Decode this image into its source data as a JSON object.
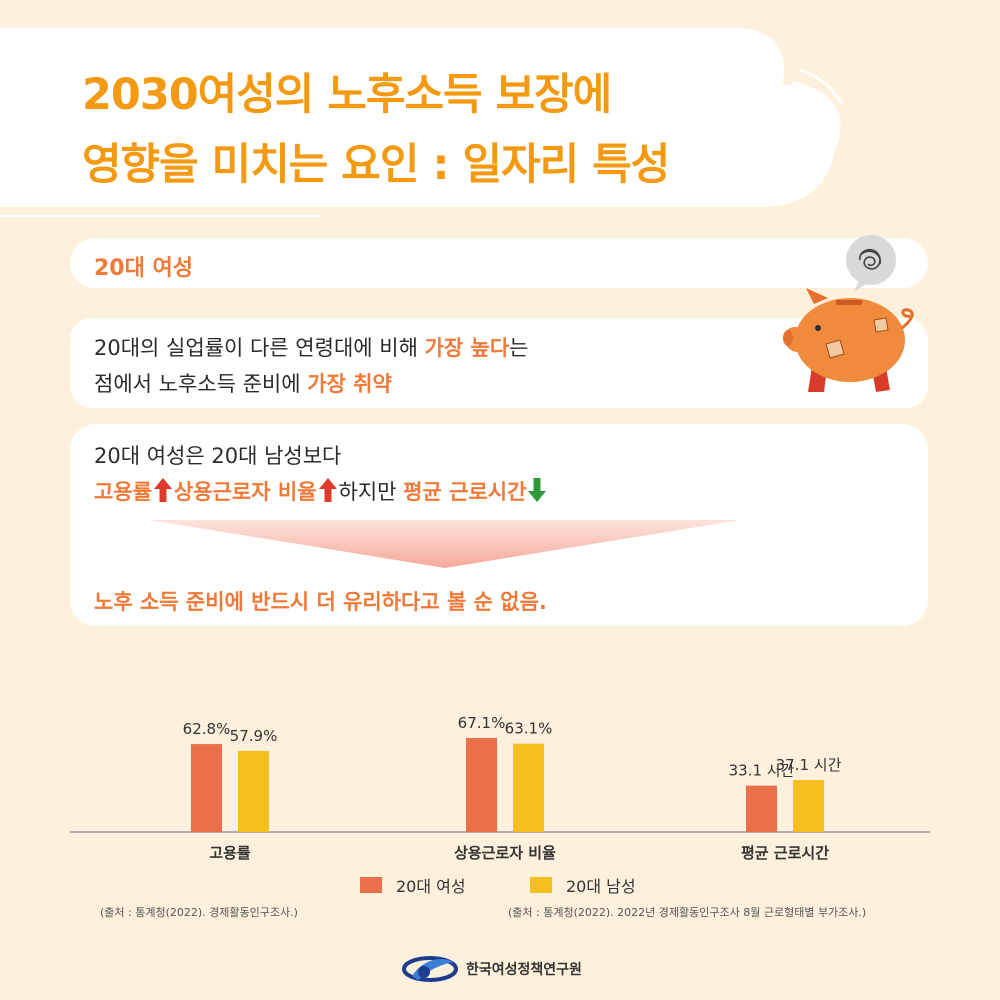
{
  "title": {
    "line1": "2030여성의 노후소득 보장에",
    "line2": "영향을 미치는 요인 : 일자리 특성"
  },
  "section": {
    "label": "20대 여성"
  },
  "card1": {
    "line1_a": "20대의 실업률이 다른 연령대에 비해 ",
    "line1_hl": "가장 높다",
    "line1_b": "는",
    "line2_a": "점에서 노후소득 준비에 ",
    "line2_hl": "가장 취약"
  },
  "card2": {
    "line1": "20대 여성은 20대 남성보다",
    "item1": "고용률",
    "item2": "상용근로자 비율",
    "middle": "하지만 ",
    "item3": "평균 근로시간",
    "conclusion": "노후 소득 준비에 반드시 더 유리하다고 볼 순 없음."
  },
  "chart_data": {
    "type": "bar",
    "categories": [
      "고용률",
      "상용근로자 비율",
      "평균 근로시간"
    ],
    "series": [
      {
        "name": "20대 여성",
        "values": [
          62.8,
          67.1,
          33.1
        ],
        "labels": [
          "62.8%",
          "67.1%",
          "33.1 시간"
        ],
        "color": "#e9704b"
      },
      {
        "name": "20대 남성",
        "values": [
          57.9,
          63.1,
          37.1
        ],
        "labels": [
          "57.9%",
          "63.1%",
          "37.1 시간"
        ],
        "color": "#f7bf1d"
      }
    ],
    "legend": "bottom"
  },
  "sources": {
    "left": "(출처 : 통계청(2022). 경제활동인구조사.)",
    "right": "(출처 : 통계청(2022). 2022년 경제활동인구조사 8월 근로형태별 부가조사.)"
  },
  "footer": {
    "org": "한국여성정책연구원"
  },
  "colors": {
    "title": "#f39a12",
    "highlight": "#ee7a3a",
    "background": "#fdf0dc"
  },
  "icons": {
    "up": "red-up-arrow-icon",
    "down": "green-down-arrow-icon",
    "pig": "piggy-bank-icon",
    "logo": "kwdi-logo-icon"
  }
}
